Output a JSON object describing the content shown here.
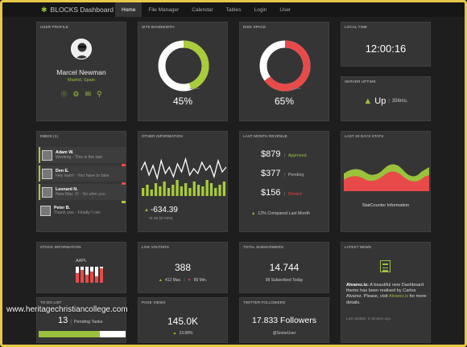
{
  "app": {
    "brand": "BLOCKS Dashboard"
  },
  "nav": [
    "Home",
    "File Manager",
    "Calendar",
    "Tables",
    "Login",
    "User"
  ],
  "profile": {
    "title": "User Profile",
    "name": "Marcel Newman",
    "location": "Madrid, Spain",
    "icons": [
      "user-icon",
      "gear-icon",
      "mail-icon",
      "key-icon"
    ]
  },
  "bandwidth": {
    "title": "Site Bandwidth",
    "percent": "45%",
    "fraction": 0.45,
    "color": "#a8cc3a",
    "legend": "Yearly data"
  },
  "disk": {
    "title": "Disk Space",
    "percent": "65%",
    "fraction": 0.65,
    "color": "#e84a4a",
    "legend": "Yearly data"
  },
  "time": {
    "title": "Local Time",
    "value": "12:00:16"
  },
  "uptime": {
    "title": "Server Uptime",
    "status": "Up",
    "ping": "356ms."
  },
  "inbox": {
    "title": "Inbox (1)",
    "messages": [
      {
        "name": "Adam W.",
        "subject": "Working - This is the last",
        "accent": "#e84a4a"
      },
      {
        "name": "Den E.",
        "subject": "Hey man! - You have to take",
        "accent": "#e84a4a"
      },
      {
        "name": "Leonard N.",
        "subject": "New Mac :D - So uhm you",
        "accent": "#a8cc3a"
      },
      {
        "name": "Peter B.",
        "subject": "Thank you - Finally I can",
        "accent": ""
      }
    ]
  },
  "other": {
    "title": "Other Information",
    "value": "-634.39",
    "sub": "+2.10 (3.71%)"
  },
  "revenue": {
    "title": "Last Month Revenue",
    "rows": [
      {
        "amount": "$879",
        "label": "Approved",
        "color": "#a8cc3a"
      },
      {
        "amount": "$377",
        "label": "Pending",
        "color": "#bbbbbb"
      },
      {
        "amount": "$156",
        "label": "Denied",
        "color": "#e84a4a"
      }
    ],
    "compare": "12% Compared Last Month"
  },
  "stats30": {
    "title": "Last 30 Days Stats",
    "caption": "StatCounter Information"
  },
  "stock": {
    "title": "Stock Information",
    "ticker": "AAPL"
  },
  "visitors": {
    "title": "Live Visitors",
    "value": "388",
    "max": "412 Max.",
    "min": "89 Min."
  },
  "subscribers": {
    "title": "Total Subscribers",
    "value": "14.744",
    "sub": "98 Subscribed Today"
  },
  "news": {
    "title": "Latest News",
    "author": "Alvarez.is:",
    "text": "A beautiful new Dashboard theme has been realised by Carlos Alvarez. Please, visit",
    "link": "Alvarez.is",
    "after": "for more details.",
    "updated": "Last Update: 5 minutes ago."
  },
  "todo": {
    "title": "To Do List",
    "count": "13",
    "label": "Pending Tasks",
    "progress": 0.7
  },
  "pageviews": {
    "title": "Page Views",
    "value": "145.0K",
    "delta": "23.88%"
  },
  "twitter": {
    "title": "Twitter Followers",
    "value": "17.833 Followers",
    "handle": "@SomeUser"
  },
  "watermark": "www.heritagechristiancollege.com"
}
